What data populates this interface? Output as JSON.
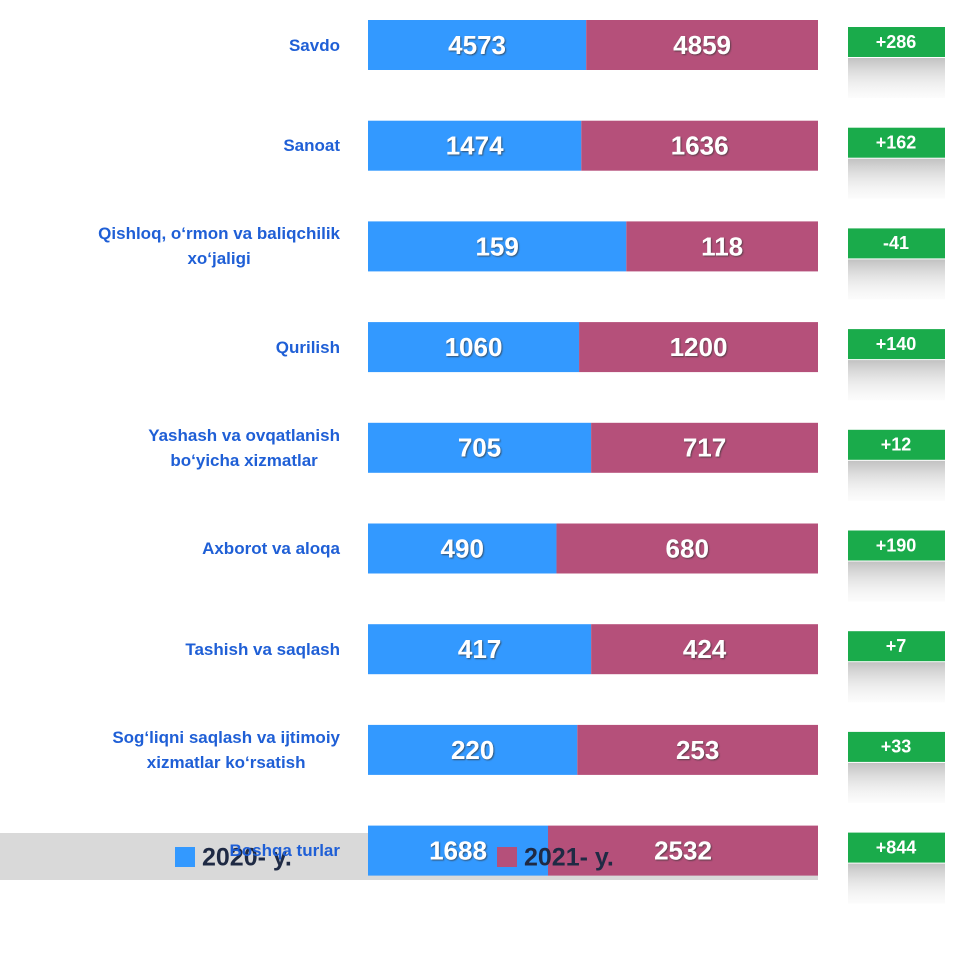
{
  "chart_data": {
    "type": "bar",
    "orientation": "horizontal",
    "stacking": "percent",
    "categories": [
      "Savdo",
      "Sanoat",
      "Qishloq, o‘rmon va baliqchilik\nxo‘jaligi",
      "Qurilish",
      "Yashash va ovqatlanish\nbo‘yicha xizmatlar",
      "Axborot va aloqa",
      "Tashish va saqlash",
      "Sog‘liqni saqlash va ijtimoiy\nxizmatlar ko‘rsatish",
      "Boshqa turlar"
    ],
    "series": [
      {
        "name": "2020- y.",
        "color": "#3399ff",
        "values": [
          4573,
          1474,
          159,
          1060,
          705,
          490,
          417,
          220,
          1688
        ]
      },
      {
        "name": "2021- y.",
        "color": "#b5507a",
        "values": [
          4859,
          1636,
          118,
          1200,
          717,
          680,
          424,
          253,
          2532
        ]
      }
    ],
    "differences": [
      286,
      162,
      -41,
      140,
      12,
      190,
      7,
      33,
      844
    ],
    "difference_labels": [
      "+286",
      "+162",
      "-41",
      "+140",
      "+12",
      "+190",
      "+7",
      "+33",
      "+844"
    ],
    "difference_color": "#1aab4b",
    "legend": "bottom"
  }
}
